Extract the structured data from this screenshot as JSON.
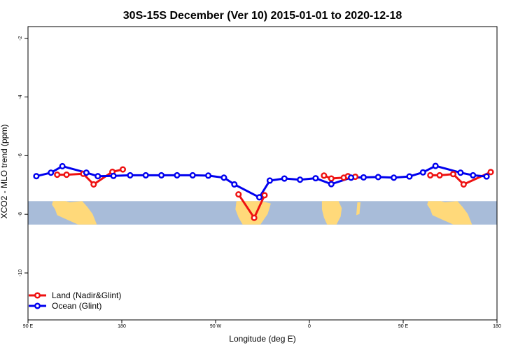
{
  "chart_data": {
    "type": "line",
    "title": "30S-15S December (Ver 10)   2015-01-01 to 2020-12-18",
    "xlabel": "Longitude (deg E)",
    "ylabel": "XCO2 - MLO trend (ppm)",
    "xlim": [
      90,
      540
    ],
    "ylim": [
      -11.6,
      -1.6
    ],
    "x_ticks": [
      {
        "value": 90,
        "label": "90 E"
      },
      {
        "value": 180,
        "label": "180"
      },
      {
        "value": 270,
        "label": "90 W"
      },
      {
        "value": 360,
        "label": "0"
      },
      {
        "value": 450,
        "label": "90 E"
      },
      {
        "value": 540,
        "label": "180"
      }
    ],
    "y_ticks": [
      {
        "value": -2,
        "label": "-2"
      },
      {
        "value": -4,
        "label": "-4"
      },
      {
        "value": -6,
        "label": "-6"
      },
      {
        "value": -8,
        "label": "-8"
      },
      {
        "value": -10,
        "label": "-10"
      }
    ],
    "grid": false,
    "legend_position": "bottom-left",
    "map_band": {
      "lat_range": [
        -30,
        -15
      ],
      "y_range": [
        -7.55,
        -8.35
      ],
      "ocean_color": "#a8bcd9",
      "land_color": "#ffd97a"
    },
    "series": [
      {
        "name": "Land (Nadir&Glint)",
        "color": "#ee1111",
        "x": [
          118,
          127,
          143,
          153,
          171,
          181
        ],
        "y": [
          -6.65,
          -6.65,
          -6.62,
          -6.98,
          -6.55,
          -6.47
        ]
      },
      {
        "name": "Land (Nadir&Glint)",
        "color": "#ee1111",
        "x": [
          292,
          307,
          317
        ],
        "y": [
          -7.32,
          -8.12,
          -7.35
        ]
      },
      {
        "name": "Land (Nadir&Glint)",
        "color": "#ee1111",
        "x": [
          374,
          381,
          393,
          397,
          404
        ],
        "y": [
          -6.68,
          -6.78,
          -6.75,
          -6.7,
          -6.72
        ]
      },
      {
        "name": "Land (Nadir&Glint)",
        "color": "#ee1111",
        "x": [
          476,
          485,
          498,
          508,
          534
        ],
        "y": [
          -6.67,
          -6.67,
          -6.63,
          -6.98,
          -6.56
        ]
      },
      {
        "name": "Ocean (Glint)",
        "color": "#0000ee",
        "x": [
          98,
          112,
          123,
          146,
          157,
          172,
          188,
          203,
          218,
          233,
          248,
          263,
          278,
          288,
          312,
          322,
          336,
          351,
          366,
          381,
          400,
          412,
          426,
          441,
          456,
          469,
          481,
          505,
          517,
          530
        ],
        "y": [
          -6.7,
          -6.58,
          -6.36,
          -6.58,
          -6.7,
          -6.69,
          -6.67,
          -6.67,
          -6.67,
          -6.67,
          -6.67,
          -6.68,
          -6.75,
          -6.98,
          -7.42,
          -6.85,
          -6.78,
          -6.82,
          -6.77,
          -6.97,
          -6.75,
          -6.74,
          -6.73,
          -6.75,
          -6.71,
          -6.57,
          -6.35,
          -6.58,
          -6.67,
          -6.71
        ]
      }
    ]
  }
}
